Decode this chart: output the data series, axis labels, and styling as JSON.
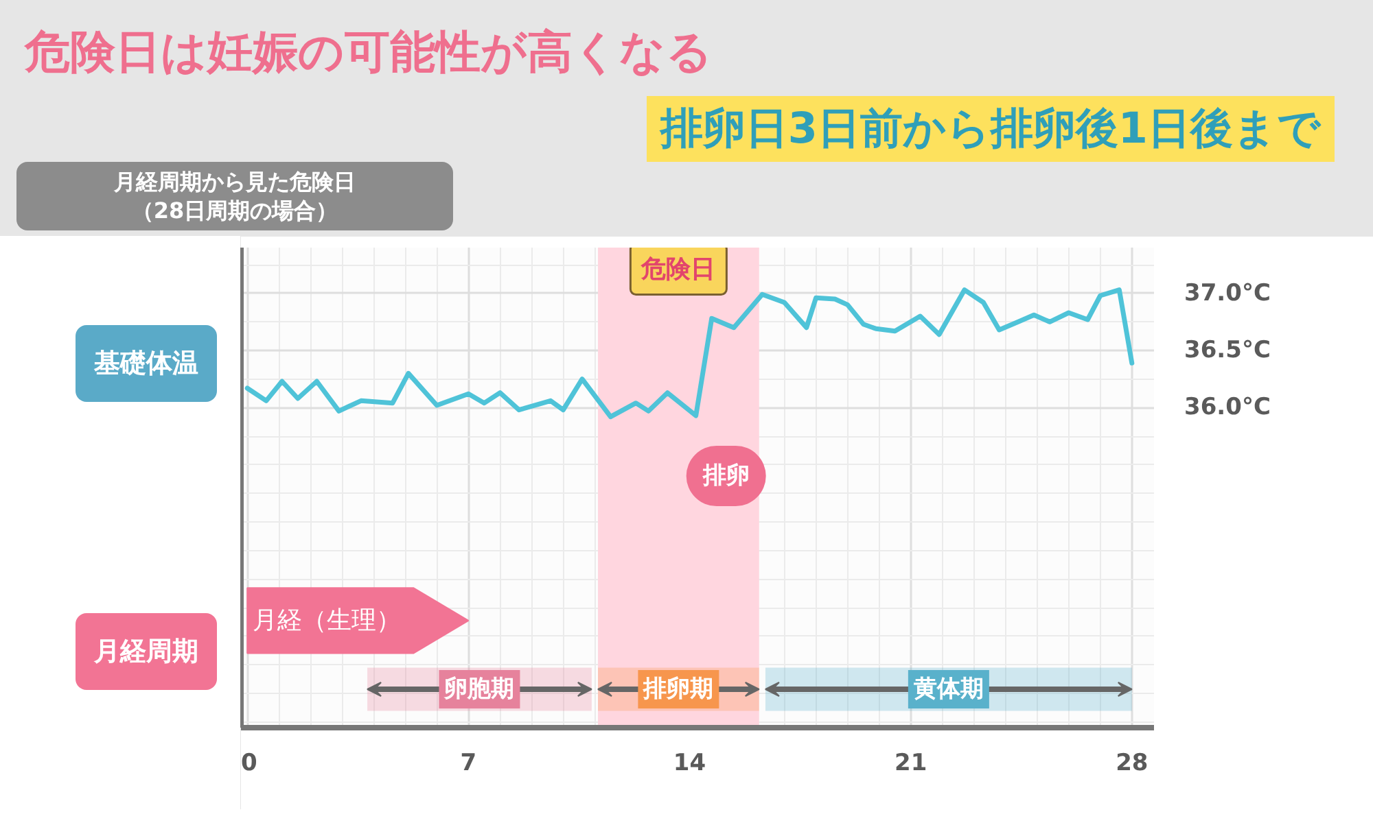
{
  "chart_data": {
    "type": "line",
    "title": "危険日は妊娠の可能性が高くなる",
    "subtitle": "排卵日3日前から排卵後1日後まで",
    "ylabel": "基礎体温",
    "x": [
      0,
      0.6,
      1.1,
      1.6,
      2.2,
      2.9,
      3.6,
      4.6,
      5.1,
      6.0,
      7.0,
      7.5,
      8.0,
      8.6,
      9.6,
      10.0,
      10.6,
      11.5,
      12.3,
      12.7,
      13.3,
      14.2,
      14.7,
      15.4,
      16.3,
      17.0,
      17.7,
      18.0,
      18.6,
      19.0,
      19.5,
      19.9,
      20.5,
      21.3,
      21.9,
      22.7,
      23.3,
      23.8,
      24.4,
      24.9,
      25.4,
      26.0,
      26.6,
      27.0,
      27.6,
      28.0
    ],
    "series": [
      {
        "color": "#4fc3d8",
        "values": [
          36.17,
          36.06,
          36.23,
          36.08,
          36.23,
          35.97,
          36.06,
          36.04,
          36.3,
          36.02,
          36.12,
          36.04,
          36.13,
          35.98,
          36.06,
          35.98,
          36.25,
          35.92,
          36.04,
          35.97,
          36.13,
          35.93,
          36.78,
          36.7,
          36.99,
          36.92,
          36.7,
          36.96,
          36.95,
          36.9,
          36.73,
          36.69,
          36.67,
          36.8,
          36.64,
          37.03,
          36.92,
          36.68,
          36.75,
          36.81,
          36.75,
          36.83,
          36.77,
          36.98,
          37.03,
          36.39
        ]
      }
    ],
    "xlim": [
      -0.2,
      28.7
    ],
    "xticks": [
      0,
      7,
      14,
      21,
      28
    ],
    "ylim": [
      33.2,
      37.4
    ],
    "yticks": [
      {
        "value": 36.0,
        "label": "36.0°C"
      },
      {
        "value": 36.5,
        "label": "36.5°C"
      },
      {
        "value": 37.0,
        "label": "37.0°C"
      }
    ],
    "grid": true,
    "bands": [
      {
        "axis": "x",
        "from": 11.1,
        "to": 16.2,
        "label": "危険日",
        "color": "#ffd6df"
      },
      {
        "axis": "x",
        "from": 0,
        "to": 7,
        "label": "月経（生理）",
        "color": "#f27494"
      },
      {
        "axis": "x",
        "from": 3.8,
        "to": 10.9,
        "label": "卵胞期",
        "color": "#e6829c"
      },
      {
        "axis": "x",
        "from": 11.1,
        "to": 16.2,
        "label": "排卵期",
        "color": "#f7964d"
      },
      {
        "axis": "x",
        "from": 16.4,
        "to": 28.0,
        "label": "黄体期",
        "color": "#59b1cb"
      }
    ],
    "annotations": [
      "月経周期から見た危険日（28日周期の場合）",
      "月経周期",
      {
        "text": "排卵",
        "x": 14.2,
        "y": 35.93
      }
    ]
  }
}
